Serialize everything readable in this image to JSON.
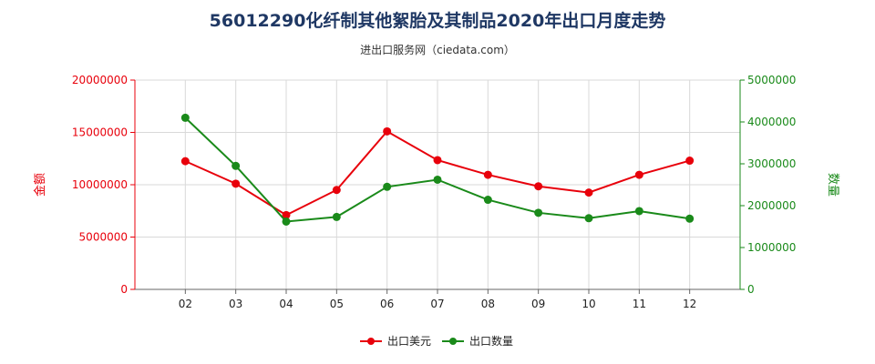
{
  "chart_data": {
    "type": "line",
    "title": "56012290化纤制其他絮胎及其制品2020年出口月度走势",
    "subtitle": "进出口服务网（ciedata.com）",
    "categories": [
      "02",
      "03",
      "04",
      "05",
      "06",
      "07",
      "08",
      "09",
      "10",
      "11",
      "12"
    ],
    "y_left": {
      "label": "金额",
      "ylim": [
        0,
        20000000
      ],
      "ticks": [
        "0",
        "5000000",
        "10000000",
        "15000000",
        "20000000"
      ],
      "color": "#e8000b"
    },
    "y_right": {
      "label": "数量",
      "ylim": [
        0,
        5000000
      ],
      "ticks": [
        "0",
        "1000000",
        "2000000",
        "3000000",
        "4000000",
        "5000000"
      ],
      "color": "#1a8a1a"
    },
    "series": [
      {
        "name": "出口美元",
        "axis": "left",
        "color": "#e8000b",
        "values": [
          12250000,
          10100000,
          7100000,
          9500000,
          15100000,
          12350000,
          10950000,
          9850000,
          9250000,
          10950000,
          12300000
        ]
      },
      {
        "name": "出口数量",
        "axis": "right",
        "color": "#1a8a1a",
        "values": [
          4100000,
          2950000,
          1620000,
          1730000,
          2450000,
          2620000,
          2140000,
          1830000,
          1700000,
          1870000,
          1690000
        ]
      }
    ],
    "grid": true,
    "legend": "bottom-center"
  }
}
